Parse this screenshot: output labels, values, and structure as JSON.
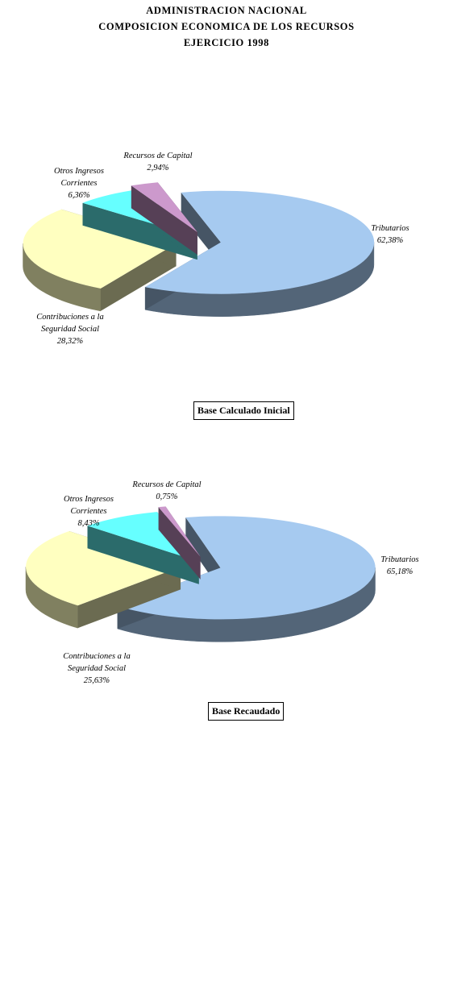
{
  "header": {
    "line1": "ADMINISTRACION NACIONAL",
    "line2": "COMPOSICION ECONOMICA DE LOS RECURSOS",
    "line3": "EJERCICIO 1998"
  },
  "colors": {
    "tributarios": "#a6caf0",
    "contribuciones": "#ffffc0",
    "otros": "#66ffff",
    "capital": "#cc99cc"
  },
  "chart_data": [
    {
      "type": "pie",
      "title": "Base Calculado Inicial",
      "categories": [
        "Tributarios",
        "Contribuciones a la Seguridad Social",
        "Otros Ingresos Corrientes",
        "Recursos de Capital"
      ],
      "values": [
        62.38,
        28.32,
        6.36,
        2.94
      ],
      "value_labels": [
        "62,38%",
        "28,32%",
        "6,36%",
        "2,94%"
      ],
      "style": "3d-exploded"
    },
    {
      "type": "pie",
      "title": "Base Recaudado",
      "categories": [
        "Tributarios",
        "Contribuciones a la Seguridad Social",
        "Otros Ingresos Corrientes",
        "Recursos de Capital"
      ],
      "values": [
        65.18,
        25.63,
        8.43,
        0.75
      ],
      "value_labels": [
        "65,18%",
        "25,63%",
        "8,43%",
        "0,75%"
      ],
      "style": "3d-exploded"
    }
  ],
  "labels": {
    "tributarios": [
      "Tributarios"
    ],
    "contribuciones": [
      "Contribuciones a la",
      "Seguridad Social"
    ],
    "otros": [
      "Otros Ingresos",
      "Corrientes"
    ],
    "capital": [
      "Recursos de Capital"
    ]
  }
}
